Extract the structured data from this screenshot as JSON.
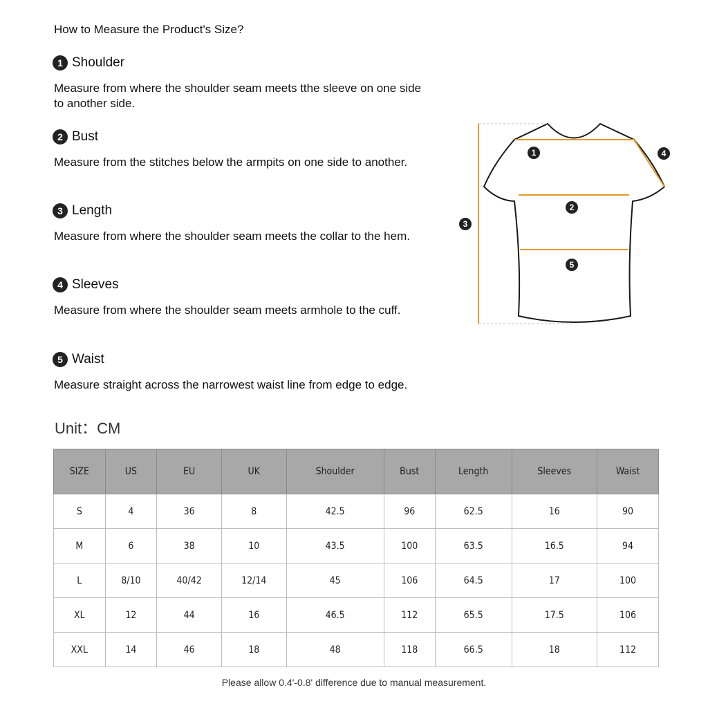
{
  "title": "How to Measure the Product's Size?",
  "sections": [
    {
      "num": "1",
      "name": "Shoulder",
      "text": "Measure from where the shoulder seam meets tthe sleeve on one side to another side."
    },
    {
      "num": "2",
      "name": "Bust",
      "text": "Measure from the stitches below the armpits on one side to another."
    },
    {
      "num": "3",
      "name": "Length",
      "text": "Measure from where the shoulder seam meets the collar to the hem."
    },
    {
      "num": "4",
      "name": "Sleeves",
      "text": "Measure from where the shoulder seam meets armhole to the cuff."
    },
    {
      "num": "5",
      "name": "Waist",
      "text": "Measure straight across the narrowest waist line from edge to edge."
    }
  ],
  "unit": "Unit：CM",
  "diagram": {
    "labels": [
      "1",
      "2",
      "3",
      "4",
      "5"
    ],
    "measure_color": "#e39a2b",
    "outline_color": "#1a1a1a"
  },
  "table": {
    "headers": [
      "SIZE",
      "US",
      "EU",
      "UK",
      "Shoulder",
      "Bust",
      "Length",
      "Sleeves",
      "Waist"
    ],
    "rows": [
      [
        "S",
        "4",
        "36",
        "8",
        "42.5",
        "96",
        "62.5",
        "16",
        "90"
      ],
      [
        "M",
        "6",
        "38",
        "10",
        "43.5",
        "100",
        "63.5",
        "16.5",
        "94"
      ],
      [
        "L",
        "8/10",
        "40/42",
        "12/14",
        "45",
        "106",
        "64.5",
        "17",
        "100"
      ],
      [
        "XL",
        "12",
        "44",
        "16",
        "46.5",
        "112",
        "65.5",
        "17.5",
        "106"
      ],
      [
        "XXL",
        "14",
        "46",
        "18",
        "48",
        "118",
        "66.5",
        "18",
        "112"
      ]
    ],
    "header_bg": "#a8a8a8"
  },
  "note": "Please allow 0.4'-0.8' difference due to manual measurement."
}
